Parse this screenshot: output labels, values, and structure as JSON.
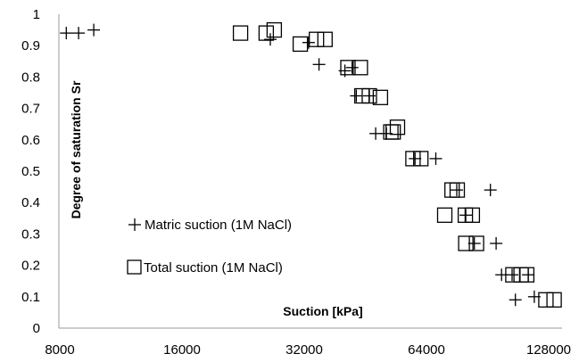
{
  "chart_data": {
    "type": "scatter",
    "xlabel": "Suction [kPa]",
    "ylabel": "Degree of saturation Sr",
    "x_scale": "log2",
    "xlim": [
      8000,
      151000
    ],
    "ylim": [
      0,
      1
    ],
    "x_ticks": [
      "8000",
      "16000",
      "32000",
      "64000",
      "128000"
    ],
    "x_tick_values": [
      8000,
      16000,
      32000,
      64000,
      128000
    ],
    "y_ticks": [
      "0",
      "0.1",
      "0.2",
      "0.3",
      "0.4",
      "0.5",
      "0.6",
      "0.7",
      "0.8",
      "0.9",
      "1"
    ],
    "y_tick_values": [
      0,
      0.1,
      0.2,
      0.3,
      0.4,
      0.5,
      0.6,
      0.7,
      0.8,
      0.9,
      1
    ],
    "grid": false,
    "legend_position": "lower-left inside plot",
    "series": [
      {
        "name": "Matric suction (1M NaCl)",
        "marker": "plus",
        "color": "#000000",
        "points": [
          {
            "x": 8300,
            "y": 0.94
          },
          {
            "x": 8900,
            "y": 0.94
          },
          {
            "x": 9700,
            "y": 0.95
          },
          {
            "x": 26400,
            "y": 0.92
          },
          {
            "x": 32800,
            "y": 0.91
          },
          {
            "x": 34800,
            "y": 0.84
          },
          {
            "x": 40300,
            "y": 0.82
          },
          {
            "x": 42000,
            "y": 0.83
          },
          {
            "x": 43000,
            "y": 0.74
          },
          {
            "x": 46300,
            "y": 0.74
          },
          {
            "x": 48000,
            "y": 0.62
          },
          {
            "x": 51000,
            "y": 0.62
          },
          {
            "x": 60000,
            "y": 0.54
          },
          {
            "x": 67500,
            "y": 0.54
          },
          {
            "x": 76000,
            "y": 0.44
          },
          {
            "x": 92000,
            "y": 0.44
          },
          {
            "x": 80000,
            "y": 0.36
          },
          {
            "x": 84000,
            "y": 0.27
          },
          {
            "x": 95000,
            "y": 0.27
          },
          {
            "x": 98000,
            "y": 0.17
          },
          {
            "x": 104000,
            "y": 0.17
          },
          {
            "x": 114000,
            "y": 0.17
          },
          {
            "x": 106000,
            "y": 0.09
          },
          {
            "x": 118000,
            "y": 0.1
          }
        ]
      },
      {
        "name": "Total suction (1M NaCl)",
        "marker": "open-square",
        "color": "#000000",
        "points": [
          {
            "x": 22300,
            "y": 0.94
          },
          {
            "x": 25800,
            "y": 0.94
          },
          {
            "x": 27000,
            "y": 0.95
          },
          {
            "x": 31300,
            "y": 0.905
          },
          {
            "x": 34300,
            "y": 0.92
          },
          {
            "x": 36000,
            "y": 0.92
          },
          {
            "x": 41000,
            "y": 0.83
          },
          {
            "x": 44000,
            "y": 0.83
          },
          {
            "x": 44400,
            "y": 0.74
          },
          {
            "x": 46300,
            "y": 0.74
          },
          {
            "x": 49300,
            "y": 0.735
          },
          {
            "x": 52300,
            "y": 0.625
          },
          {
            "x": 53000,
            "y": 0.625
          },
          {
            "x": 54300,
            "y": 0.64
          },
          {
            "x": 59300,
            "y": 0.54
          },
          {
            "x": 62000,
            "y": 0.54
          },
          {
            "x": 71000,
            "y": 0.36
          },
          {
            "x": 74000,
            "y": 0.44
          },
          {
            "x": 76200,
            "y": 0.44
          },
          {
            "x": 79800,
            "y": 0.36
          },
          {
            "x": 83000,
            "y": 0.36
          },
          {
            "x": 80000,
            "y": 0.27
          },
          {
            "x": 85000,
            "y": 0.27
          },
          {
            "x": 104500,
            "y": 0.17
          },
          {
            "x": 109500,
            "y": 0.17
          },
          {
            "x": 113000,
            "y": 0.17
          },
          {
            "x": 126000,
            "y": 0.09
          },
          {
            "x": 132000,
            "y": 0.09
          }
        ]
      }
    ]
  }
}
